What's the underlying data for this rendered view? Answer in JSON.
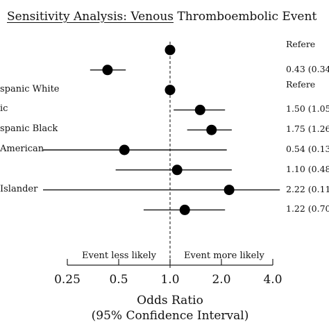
{
  "chart_data": {
    "type": "forest",
    "title_underlined": "Sensitivity Analysis: Venous",
    "title_rest": " Thromboembolic Event",
    "xlabel_line1": "Odds Ratio",
    "xlabel_line2": "(95% Confidence Interval)",
    "x_scale": "log2",
    "xlim": [
      0.25,
      4.0
    ],
    "x_ticks": [
      "0.25",
      "0.5",
      "1.0",
      "2.0",
      "4.0"
    ],
    "x_tick_values": [
      0.25,
      0.5,
      1.0,
      2.0,
      4.0
    ],
    "reference_line": 1.0,
    "direction_left": "Event less likely",
    "direction_right": "Event more likely",
    "rows": [
      {
        "label": "",
        "or": 1.0,
        "lo": null,
        "hi": null,
        "value_text": "Refere"
      },
      {
        "label": "",
        "or": 0.43,
        "lo": 0.34,
        "hi": 0.55,
        "value_text": "0.43 (0.34"
      },
      {
        "label": "spanic White",
        "or": 1.0,
        "lo": null,
        "hi": null,
        "value_text": "Refere"
      },
      {
        "label": "ic",
        "or": 1.5,
        "lo": 1.05,
        "hi": 2.1,
        "value_text": "1.50 (1.05"
      },
      {
        "label": "spanic Black",
        "or": 1.75,
        "lo": 1.26,
        "hi": 2.3,
        "value_text": "1.75 (1.26"
      },
      {
        "label": "American",
        "or": 0.54,
        "lo": 0.13,
        "hi": 2.15,
        "value_text": "0.54 (0.13"
      },
      {
        "label": "",
        "or": 1.1,
        "lo": 0.48,
        "hi": 2.3,
        "value_text": "1.10 (0.48"
      },
      {
        "label": "Islander",
        "or": 2.22,
        "lo": 0.11,
        "hi": 4.4,
        "value_text": "2.22 (0.11"
      },
      {
        "label": "",
        "or": 1.22,
        "lo": 0.7,
        "hi": 2.1,
        "value_text": "1.22 (0.70"
      }
    ]
  }
}
